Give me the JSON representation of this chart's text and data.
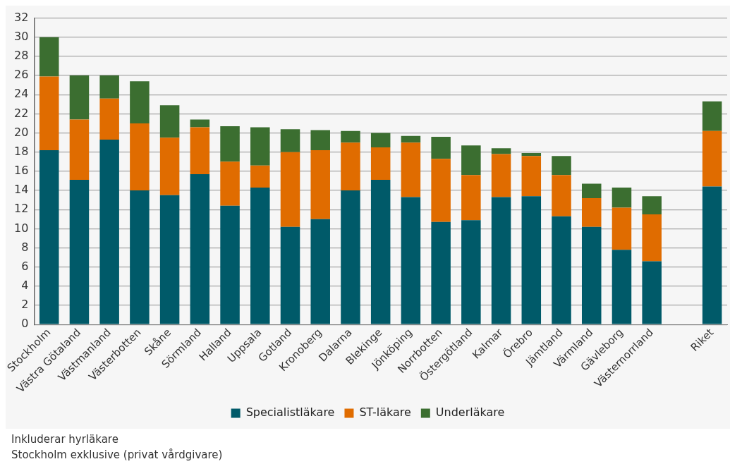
{
  "chart_data": {
    "type": "bar",
    "stacked": true,
    "grid": "y",
    "legend": "bottom",
    "categories": [
      "Stockholm",
      "Västra Götaland",
      "Västmanland",
      "Västerbotten",
      "Skåne",
      "Sörmland",
      "Halland",
      "Uppsala",
      "Gotland",
      "Kronoberg",
      "Dalarna",
      "Blekinge",
      "Jönköping",
      "Norrbotten",
      "Östergötland",
      "Kalmar",
      "Örebro",
      "Jämtland",
      "Värmland",
      "Gävleborg",
      "Västernorrland",
      null,
      "Riket"
    ],
    "series": [
      {
        "name": "Specialistläkare",
        "color": "#005a69",
        "values": [
          18.2,
          15.1,
          19.3,
          14.0,
          13.5,
          15.7,
          12.4,
          14.3,
          10.2,
          11.0,
          14.0,
          15.1,
          13.3,
          10.7,
          10.9,
          13.3,
          13.4,
          11.3,
          10.2,
          7.8,
          6.6,
          null,
          14.4
        ]
      },
      {
        "name": "ST-läkare",
        "color": "#e06c00",
        "values": [
          7.7,
          6.3,
          4.3,
          7.0,
          6.0,
          4.9,
          4.6,
          2.3,
          7.8,
          7.2,
          5.0,
          3.4,
          5.7,
          6.6,
          4.7,
          4.5,
          4.2,
          4.3,
          3.0,
          4.4,
          4.9,
          null,
          5.8
        ]
      },
      {
        "name": "Underläkare",
        "color": "#3b6e30",
        "values": [
          4.1,
          4.6,
          2.4,
          4.4,
          3.4,
          0.8,
          3.7,
          4.0,
          2.4,
          2.1,
          1.2,
          1.5,
          0.7,
          2.3,
          3.1,
          0.6,
          0.3,
          2.0,
          1.5,
          2.1,
          1.9,
          null,
          3.1
        ]
      }
    ],
    "ylim": [
      0,
      32
    ],
    "yticks": [
      0,
      2,
      4,
      6,
      8,
      10,
      12,
      14,
      16,
      18,
      20,
      22,
      24,
      26,
      28,
      30,
      32
    ],
    "annotations": [
      "Inkluderar hyrläkare",
      "Stockholm exklusive (privat vårdgivare)"
    ]
  }
}
